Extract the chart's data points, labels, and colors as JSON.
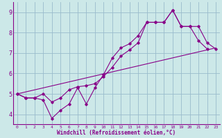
{
  "background_color": "#cce8e8",
  "line_color": "#880088",
  "grid_color": "#99bbcc",
  "xlabel": "Windchill (Refroidissement éolien,°C)",
  "xlim": [
    -0.5,
    23.5
  ],
  "ylim": [
    3.5,
    9.5
  ],
  "yticks": [
    4,
    5,
    6,
    7,
    8,
    9
  ],
  "xticks": [
    0,
    1,
    2,
    3,
    4,
    5,
    6,
    7,
    8,
    9,
    10,
    11,
    12,
    13,
    14,
    15,
    16,
    17,
    18,
    19,
    20,
    21,
    22,
    23
  ],
  "line1_x": [
    0,
    1,
    2,
    3,
    4,
    5,
    6,
    7,
    8,
    9,
    10,
    11,
    12,
    13,
    14,
    15,
    16,
    17,
    18,
    19,
    20,
    21,
    22,
    23
  ],
  "line1_y": [
    5.0,
    4.8,
    4.8,
    5.0,
    4.6,
    4.8,
    5.2,
    5.35,
    5.4,
    5.5,
    5.85,
    6.3,
    6.85,
    7.15,
    7.5,
    8.5,
    8.5,
    8.5,
    9.1,
    8.3,
    8.3,
    8.3,
    7.5,
    7.2
  ],
  "line2_x": [
    0,
    1,
    2,
    3,
    4,
    5,
    6,
    7,
    8,
    9,
    10,
    11,
    12,
    13,
    14,
    15,
    16,
    17,
    18,
    19,
    20,
    21,
    22
  ],
  "line2_y": [
    5.0,
    4.8,
    4.8,
    4.7,
    3.8,
    4.2,
    4.5,
    5.3,
    4.5,
    5.3,
    5.95,
    6.75,
    7.25,
    7.45,
    7.85,
    8.5,
    8.5,
    8.5,
    9.1,
    8.3,
    8.3,
    7.6,
    7.2
  ],
  "line3_x": [
    0,
    23
  ],
  "line3_y": [
    5.0,
    7.25
  ],
  "marker_style": "D",
  "marker_size": 1.8,
  "line_width": 0.8
}
